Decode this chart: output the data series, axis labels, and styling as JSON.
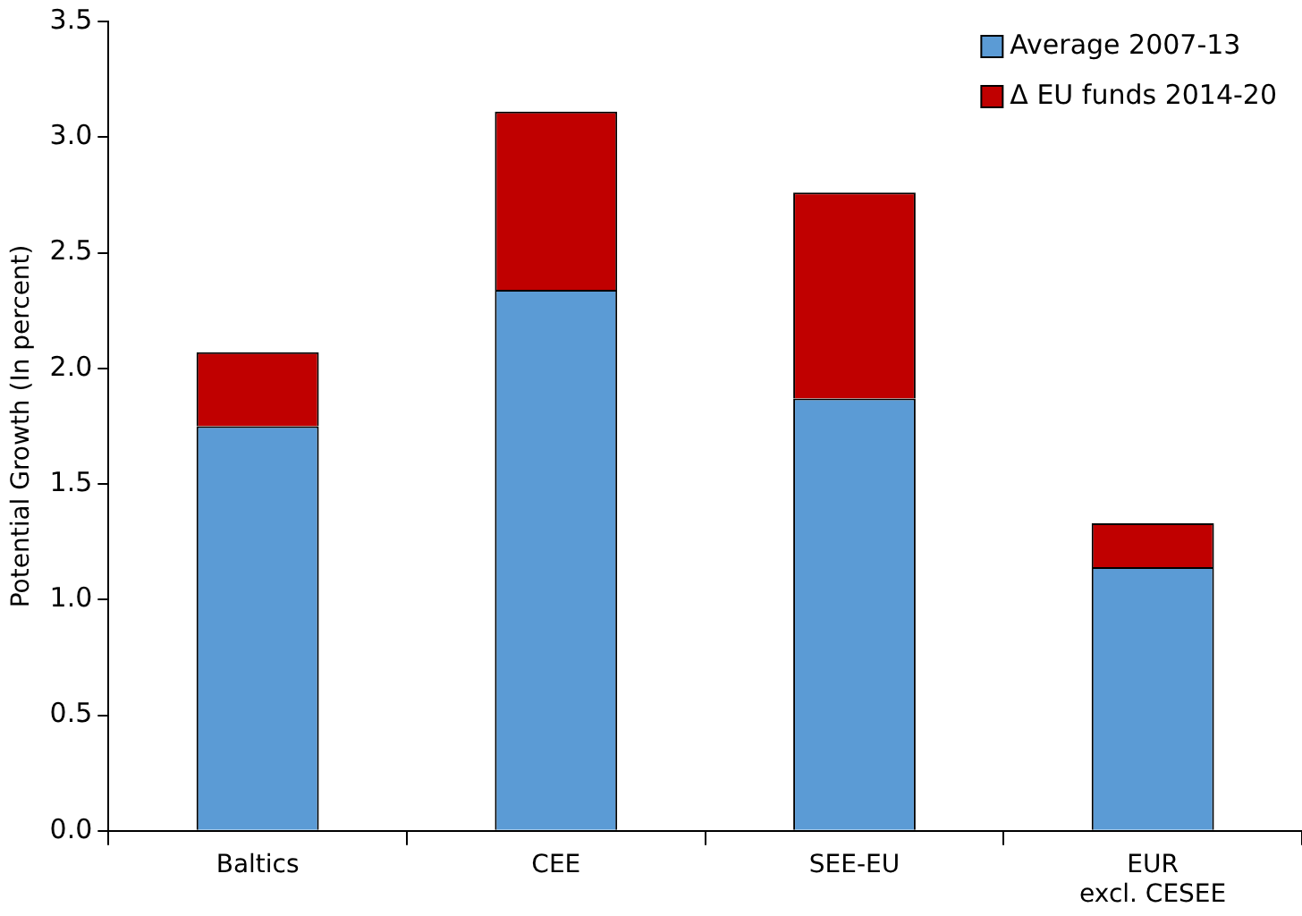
{
  "chart_data": {
    "type": "bar",
    "stacked": true,
    "ylabel": "Potential Growth (In percent)",
    "categories": [
      "Baltics",
      "CEE",
      "SEE-EU",
      "EUR\nexcl. CESEE"
    ],
    "series": [
      {
        "name": "Average 2007-13",
        "color": "#5b9bd5",
        "values": [
          1.75,
          2.34,
          1.87,
          1.14
        ]
      },
      {
        "name": "Δ EU funds 2014-20",
        "color": "#c00000",
        "values": [
          0.32,
          0.77,
          0.89,
          0.19
        ]
      }
    ],
    "ylim": [
      0,
      3.5
    ],
    "yticks": [
      {
        "value": 0,
        "label": "0.0"
      },
      {
        "value": 0.5,
        "label": "0.5"
      },
      {
        "value": 1,
        "label": "1.0"
      },
      {
        "value": 1.5,
        "label": "1.5"
      },
      {
        "value": 2,
        "label": "2.0"
      },
      {
        "value": 2.5,
        "label": "2.5"
      },
      {
        "value": 3,
        "label": "3.0"
      },
      {
        "value": 3.5,
        "label": "3.5"
      }
    ],
    "grid": false,
    "legend": "top right"
  }
}
